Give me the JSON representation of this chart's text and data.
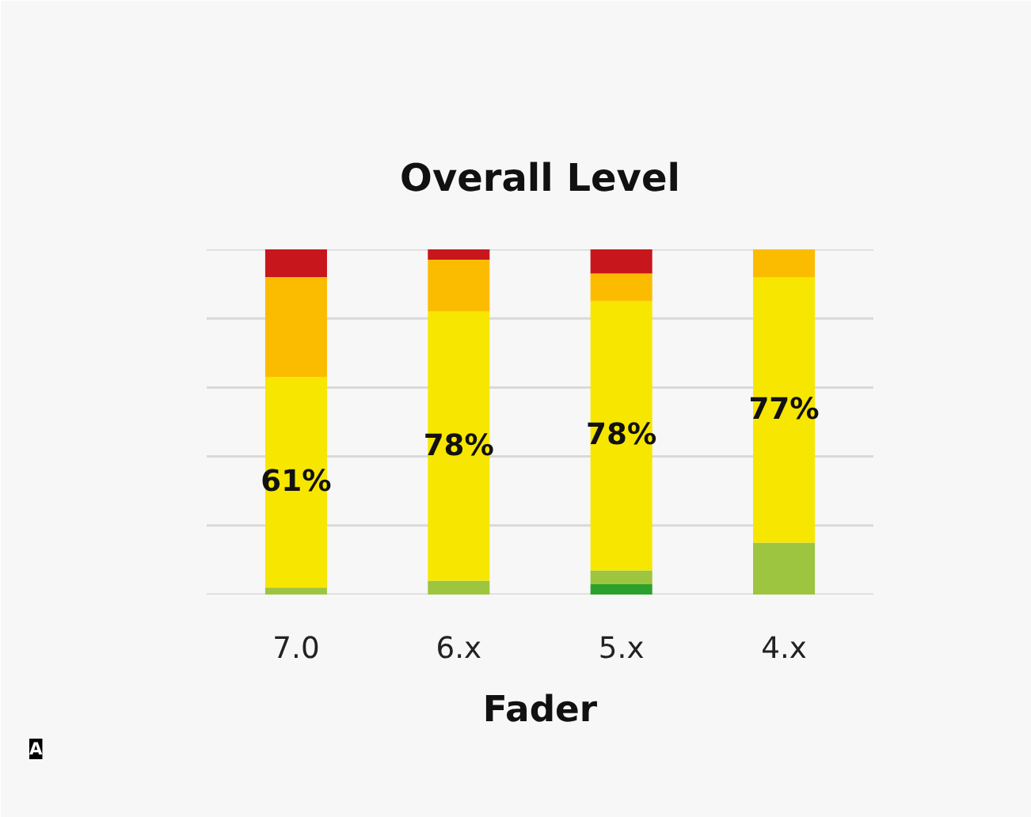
{
  "chart_data": {
    "type": "bar",
    "title": "Overall Level",
    "xlabel": "Fader",
    "categories": [
      "7.0",
      "6.x",
      "5.x",
      "4.x"
    ],
    "stacked": true,
    "grid": "y",
    "ylim": [
      0,
      100
    ],
    "yticks": [
      {
        "value": 0,
        "label": null
      },
      {
        "value": 20,
        "label": null
      },
      {
        "value": 40,
        "label": null
      },
      {
        "value": 60,
        "label": null
      },
      {
        "value": 80,
        "label": null
      },
      {
        "value": 100,
        "label": null
      }
    ],
    "tick_labels": "x",
    "series": [
      {
        "color": "#2ca02c",
        "values": [
          0,
          0,
          3,
          0
        ]
      },
      {
        "color": "#9dc53f",
        "values": [
          2,
          4,
          4,
          15
        ]
      },
      {
        "color": "#f7e600",
        "values": [
          61,
          78,
          78,
          77
        ],
        "value_labels": [
          "61%",
          "78%",
          "78%",
          "77%"
        ]
      },
      {
        "color": "#fbbc00",
        "values": [
          29,
          15,
          8,
          8
        ]
      },
      {
        "color": "#c8161d",
        "values": [
          8,
          3,
          7,
          0
        ]
      }
    ],
    "annotations": [
      "A"
    ]
  }
}
